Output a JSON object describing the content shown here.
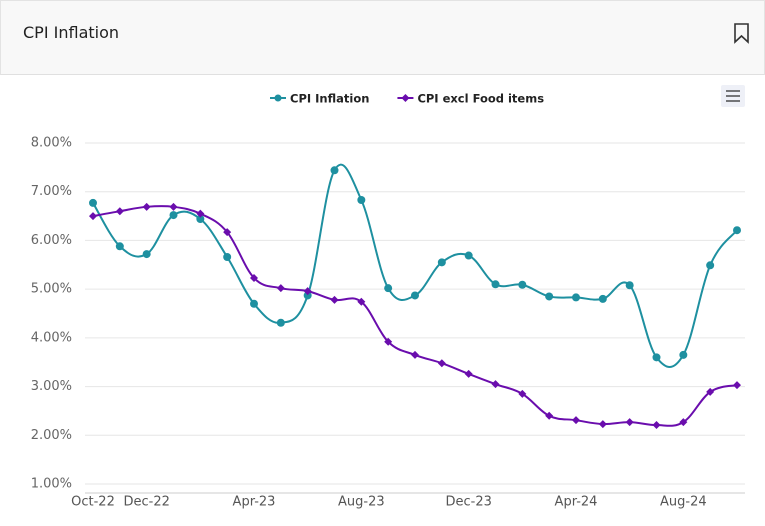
{
  "header": {
    "title": "CPI Inflation"
  },
  "chart_data": {
    "type": "line",
    "categories": [
      "Oct-22",
      null,
      "Dec-22",
      null,
      null,
      null,
      "Apr-23",
      null,
      null,
      null,
      "Aug-23",
      null,
      null,
      null,
      "Dec-23",
      null,
      null,
      null,
      "Apr-24",
      null,
      null,
      null,
      "Aug-24",
      null,
      null
    ],
    "series": [
      {
        "name": "CPI Inflation",
        "color": "#1e90a0",
        "marker": "circle",
        "values": [
          6.77,
          5.88,
          5.72,
          6.52,
          6.44,
          5.66,
          4.7,
          4.31,
          4.87,
          7.44,
          6.83,
          5.02,
          4.87,
          5.55,
          5.69,
          5.1,
          5.09,
          4.85,
          4.83,
          4.8,
          5.08,
          3.6,
          3.65,
          5.49,
          6.21
        ]
      },
      {
        "name": "CPI excl Food items",
        "color": "#6a0dad",
        "marker": "diamond",
        "values": [
          6.5,
          6.6,
          6.69,
          6.69,
          6.55,
          6.17,
          5.23,
          5.02,
          4.96,
          4.78,
          4.74,
          3.92,
          3.65,
          3.48,
          3.26,
          3.05,
          2.85,
          2.4,
          2.31,
          2.23,
          2.27,
          2.21,
          2.27,
          2.89,
          3.03
        ]
      }
    ],
    "ylim": [
      1,
      8
    ],
    "yticks": [
      {
        "value": 1,
        "label": "1.00%"
      },
      {
        "value": 2,
        "label": "2.00%"
      },
      {
        "value": 3,
        "label": "3.00%"
      },
      {
        "value": 4,
        "label": "4.00%"
      },
      {
        "value": 5,
        "label": "5.00%"
      },
      {
        "value": 6,
        "label": "6.00%"
      },
      {
        "value": 7,
        "label": "7.00%"
      },
      {
        "value": 8,
        "label": "8.00%"
      }
    ],
    "grid": true
  }
}
